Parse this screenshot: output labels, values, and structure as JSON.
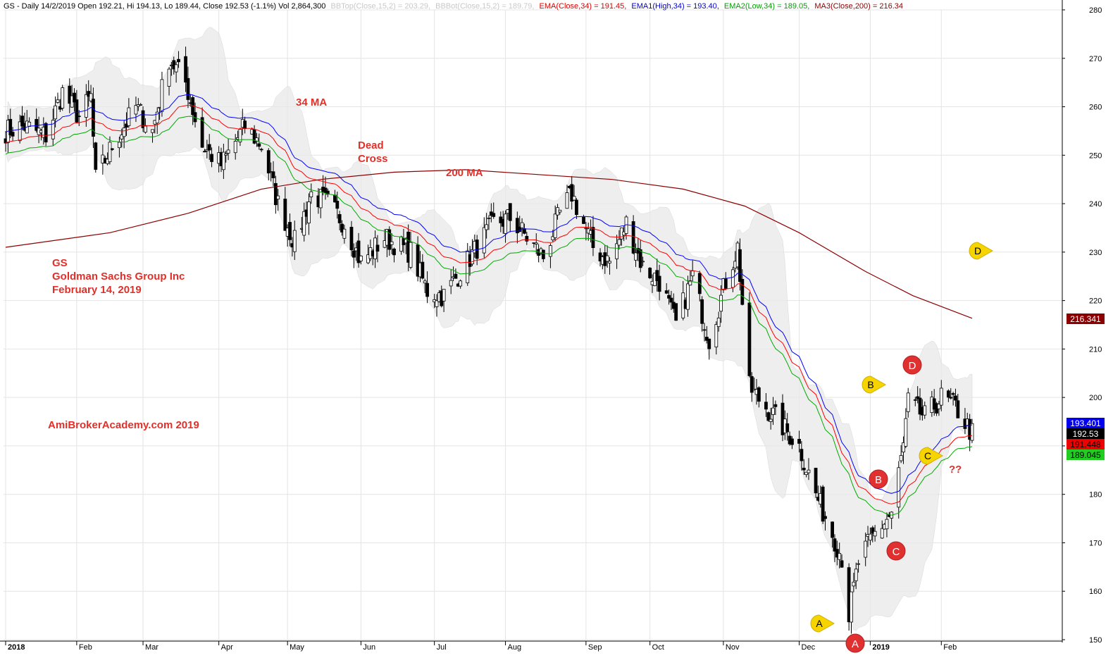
{
  "header": {
    "prefix": "GS - Daily 14/2/2019 Open 192.21, Hi 194.13, Lo 189.44, Close 192.53 (-1.1%) Vol 2,864,300",
    "bbtop": "BBTop(Close,15,2) = 203.29,",
    "bbbot": "BBBot(Close,15,2) = 189.79,",
    "ema": "EMA(Close,34) = 191.45,",
    "ema1": "EMA1(High,34) = 193.40,",
    "ema2": "EMA2(Low,34) = 189.05,",
    "ma3": "MA3(Close,200) = 216.34"
  },
  "annotations": {
    "ticker": "GS",
    "company": "Goldman Sachs Group Inc",
    "date": "February 14, 2019",
    "label_34ma": "34 MA",
    "dead_cross_1": "Dead",
    "dead_cross_2": "Cross",
    "label_200ma": "200 MA",
    "watermark": "AmiBrokerAcademy.com  2019",
    "question": "??"
  },
  "markers": {
    "red_A": "A",
    "red_B": "B",
    "red_C": "C",
    "red_D": "D",
    "yellow_A": "A",
    "yellow_B": "B",
    "yellow_C": "C",
    "yellow_D": "D"
  },
  "price_labels": {
    "ma200": "216.341",
    "ema1": "193.401",
    "close": "192.53",
    "ema": "191.448",
    "ema2": "189.045"
  },
  "colors": {
    "ema": "#ff0000",
    "ema1": "#0000ff",
    "ema2": "#00aa00",
    "ma200": "#8b0000",
    "bbands": "#e8e8e8",
    "annotation": "#e0302a",
    "marker_red": "#e03030",
    "marker_yellow": "#f5d400"
  },
  "chart_data": {
    "type": "candlestick",
    "symbol": "GS",
    "ylim": [
      150,
      280
    ],
    "yticks": [
      150,
      160,
      170,
      180,
      190,
      200,
      210,
      220,
      230,
      240,
      250,
      260,
      270,
      280
    ],
    "x_labels": [
      "2018",
      "Feb",
      "Mar",
      "Apr",
      "May",
      "Jun",
      "Jul",
      "Aug",
      "Sep",
      "Oct",
      "Nov",
      "Dec",
      "2019",
      "Feb"
    ],
    "grid": true,
    "close_path": [
      [
        "2018-01-02",
        255
      ],
      [
        "2018-01-10",
        256
      ],
      [
        "2018-01-19",
        254
      ],
      [
        "2018-01-26",
        263
      ],
      [
        "2018-02-02",
        258
      ],
      [
        "2018-02-07",
        262
      ],
      [
        "2018-02-09",
        245
      ],
      [
        "2018-02-16",
        252
      ],
      [
        "2018-02-26",
        260
      ],
      [
        "2018-03-05",
        255
      ],
      [
        "2018-03-12",
        270
      ],
      [
        "2018-03-19",
        265
      ],
      [
        "2018-03-26",
        252
      ],
      [
        "2018-04-03",
        248
      ],
      [
        "2018-04-13",
        256
      ],
      [
        "2018-04-20",
        252
      ],
      [
        "2018-04-27",
        240
      ],
      [
        "2018-05-04",
        232
      ],
      [
        "2018-05-11",
        242
      ],
      [
        "2018-05-18",
        240
      ],
      [
        "2018-05-25",
        236
      ],
      [
        "2018-06-01",
        228
      ],
      [
        "2018-06-11",
        233
      ],
      [
        "2018-06-22",
        230
      ],
      [
        "2018-06-29",
        222
      ],
      [
        "2018-07-06",
        221
      ],
      [
        "2018-07-13",
        226
      ],
      [
        "2018-07-20",
        231
      ],
      [
        "2018-07-27",
        236
      ],
      [
        "2018-08-03",
        237
      ],
      [
        "2018-08-10",
        233
      ],
      [
        "2018-08-17",
        229
      ],
      [
        "2018-08-24",
        238
      ],
      [
        "2018-08-29",
        242
      ],
      [
        "2018-09-07",
        231
      ],
      [
        "2018-09-14",
        228
      ],
      [
        "2018-09-21",
        236
      ],
      [
        "2018-09-28",
        227
      ],
      [
        "2018-10-05",
        224
      ],
      [
        "2018-10-12",
        215
      ],
      [
        "2018-10-19",
        225
      ],
      [
        "2018-10-26",
        212
      ],
      [
        "2018-11-02",
        224
      ],
      [
        "2018-11-07",
        231
      ],
      [
        "2018-11-12",
        202
      ],
      [
        "2018-11-19",
        198
      ],
      [
        "2018-11-26",
        194
      ],
      [
        "2018-12-03",
        190
      ],
      [
        "2018-12-10",
        180
      ],
      [
        "2018-12-17",
        172
      ],
      [
        "2018-12-21",
        167
      ],
      [
        "2018-12-24",
        155
      ],
      [
        "2018-12-28",
        166
      ],
      [
        "2019-01-04",
        172
      ],
      [
        "2019-01-11",
        176
      ],
      [
        "2019-01-16",
        190
      ],
      [
        "2019-01-18",
        199
      ],
      [
        "2019-01-25",
        196
      ],
      [
        "2019-02-01",
        200
      ],
      [
        "2019-02-07",
        198
      ],
      [
        "2019-02-14",
        192.53
      ]
    ],
    "series": [
      {
        "name": "EMA(Close,34)",
        "last": 191.45
      },
      {
        "name": "EMA1(High,34)",
        "last": 193.4
      },
      {
        "name": "EMA2(Low,34)",
        "last": 189.05
      },
      {
        "name": "MA3(Close,200)",
        "last": 216.34
      },
      {
        "name": "BBTop(Close,15,2)",
        "last": 203.29
      },
      {
        "name": "BBBot(Close,15,2)",
        "last": 189.79
      }
    ]
  }
}
